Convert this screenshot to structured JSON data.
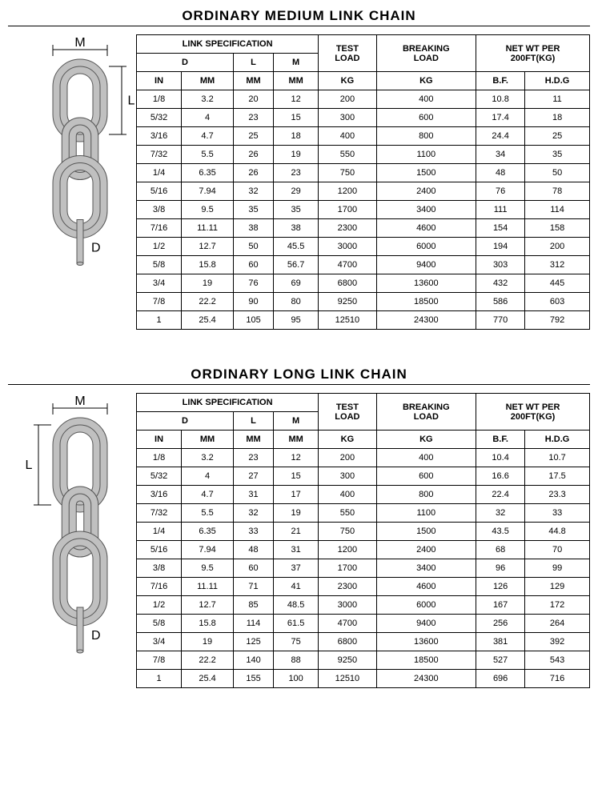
{
  "tables": [
    {
      "title": "ORDINARY MEDIUM LINK CHAIN",
      "diagram_type": "medium",
      "headers": {
        "r1": [
          "LINK SPECIFICATION",
          "TEST",
          "BREAKING",
          "NET WT PER"
        ],
        "r2": [
          "D",
          "L",
          "M",
          "LOAD",
          "LOAD",
          "200FT(KG)"
        ],
        "r3": [
          "IN",
          "MM",
          "MM",
          "MM",
          "KG",
          "KG",
          "B.F.",
          "H.D.G"
        ]
      },
      "rows": [
        [
          "1/8",
          "3.2",
          "20",
          "12",
          "200",
          "400",
          "10.8",
          "11"
        ],
        [
          "5/32",
          "4",
          "23",
          "15",
          "300",
          "600",
          "17.4",
          "18"
        ],
        [
          "3/16",
          "4.7",
          "25",
          "18",
          "400",
          "800",
          "24.4",
          "25"
        ],
        [
          "7/32",
          "5.5",
          "26",
          "19",
          "550",
          "1100",
          "34",
          "35"
        ],
        [
          "1/4",
          "6.35",
          "26",
          "23",
          "750",
          "1500",
          "48",
          "50"
        ],
        [
          "5/16",
          "7.94",
          "32",
          "29",
          "1200",
          "2400",
          "76",
          "78"
        ],
        [
          "3/8",
          "9.5",
          "35",
          "35",
          "1700",
          "3400",
          "111",
          "114"
        ],
        [
          "7/16",
          "11.11",
          "38",
          "38",
          "2300",
          "4600",
          "154",
          "158"
        ],
        [
          "1/2",
          "12.7",
          "50",
          "45.5",
          "3000",
          "6000",
          "194",
          "200"
        ],
        [
          "5/8",
          "15.8",
          "60",
          "56.7",
          "4700",
          "9400",
          "303",
          "312"
        ],
        [
          "3/4",
          "19",
          "76",
          "69",
          "6800",
          "13600",
          "432",
          "445"
        ],
        [
          "7/8",
          "22.2",
          "90",
          "80",
          "9250",
          "18500",
          "586",
          "603"
        ],
        [
          "1",
          "25.4",
          "105",
          "95",
          "12510",
          "24300",
          "770",
          "792"
        ]
      ]
    },
    {
      "title": "ORDINARY LONG LINK CHAIN",
      "diagram_type": "long",
      "headers": {
        "r1": [
          "LINK SPECIFICATION",
          "TEST",
          "BREAKING",
          "NET WT PER"
        ],
        "r2": [
          "D",
          "L",
          "M",
          "LOAD",
          "LOAD",
          "200FT(KG)"
        ],
        "r3": [
          "IN",
          "MM",
          "MM",
          "MM",
          "KG",
          "KG",
          "B.F.",
          "H.D.G"
        ]
      },
      "rows": [
        [
          "1/8",
          "3.2",
          "23",
          "12",
          "200",
          "400",
          "10.4",
          "10.7"
        ],
        [
          "5/32",
          "4",
          "27",
          "15",
          "300",
          "600",
          "16.6",
          "17.5"
        ],
        [
          "3/16",
          "4.7",
          "31",
          "17",
          "400",
          "800",
          "22.4",
          "23.3"
        ],
        [
          "7/32",
          "5.5",
          "32",
          "19",
          "550",
          "1100",
          "32",
          "33"
        ],
        [
          "1/4",
          "6.35",
          "33",
          "21",
          "750",
          "1500",
          "43.5",
          "44.8"
        ],
        [
          "5/16",
          "7.94",
          "48",
          "31",
          "1200",
          "2400",
          "68",
          "70"
        ],
        [
          "3/8",
          "9.5",
          "60",
          "37",
          "1700",
          "3400",
          "96",
          "99"
        ],
        [
          "7/16",
          "11.11",
          "71",
          "41",
          "2300",
          "4600",
          "126",
          "129"
        ],
        [
          "1/2",
          "12.7",
          "85",
          "48.5",
          "3000",
          "6000",
          "167",
          "172"
        ],
        [
          "5/8",
          "15.8",
          "114",
          "61.5",
          "4700",
          "9400",
          "256",
          "264"
        ],
        [
          "3/4",
          "19",
          "125",
          "75",
          "6800",
          "13600",
          "381",
          "392"
        ],
        [
          "7/8",
          "22.2",
          "140",
          "88",
          "9250",
          "18500",
          "527",
          "543"
        ],
        [
          "1",
          "25.4",
          "155",
          "100",
          "12510",
          "24300",
          "696",
          "716"
        ]
      ]
    }
  ],
  "labels": {
    "M": "M",
    "L": "L",
    "D": "D"
  },
  "colors": {
    "chain_fill": "#c0c0c0",
    "chain_stroke": "#555555",
    "dim_line": "#000000",
    "text": "#000000"
  }
}
